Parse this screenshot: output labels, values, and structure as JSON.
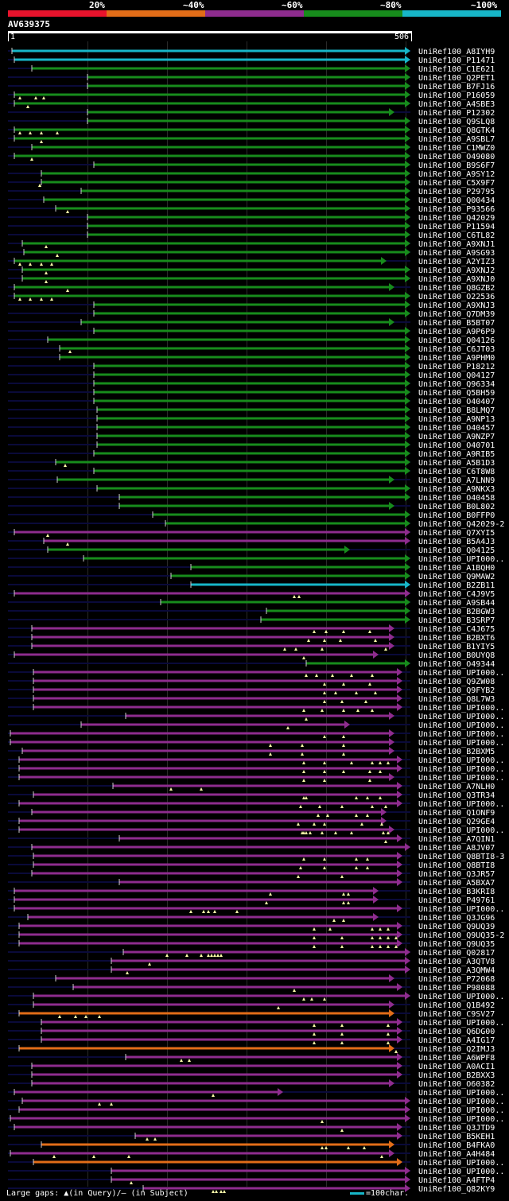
{
  "legend": {
    "labels": [
      "20%",
      "~40%",
      "~60%",
      "~80%",
      "~100%"
    ],
    "colors": [
      "#e8132c",
      "#e26d18",
      "#8e2c8e",
      "#178c1c",
      "#17b6c8"
    ]
  },
  "query": {
    "name": "AV639375",
    "length": 506,
    "ruler_start": "1",
    "ruler_end": "506"
  },
  "footer": {
    "gaps_text": "Large gaps: ▲(in Query)/– (in Subject)",
    "scale_text": "=100char."
  },
  "colors": {
    "cyan": "#17b6c8",
    "green": "#178c1c",
    "purple": "#8e2c8e",
    "orange": "#e26d18",
    "red": "#e8132c",
    "line": "#0a0a3a",
    "marker": "#ffffaa"
  },
  "hits": [
    {
      "name": "UniRef100_A8IYH9",
      "start": 5,
      "end": 506,
      "c": "cyan",
      "gaps": []
    },
    {
      "name": "UniRef100_P11471",
      "start": 8,
      "end": 506,
      "c": "cyan",
      "gaps": []
    },
    {
      "name": "UniRef100_C1E621",
      "start": 30,
      "end": 506,
      "c": "green",
      "gaps": []
    },
    {
      "name": "UniRef100_Q2PET1",
      "start": 100,
      "end": 506,
      "c": "green",
      "gaps": []
    },
    {
      "name": "UniRef100_B7FJ16",
      "start": 100,
      "end": 506,
      "c": "green",
      "gaps": []
    },
    {
      "name": "UniRef100_P16059",
      "start": 8,
      "end": 506,
      "c": "green",
      "gaps": [
        15,
        35,
        45
      ]
    },
    {
      "name": "UniRef100_A4SBE3",
      "start": 8,
      "end": 506,
      "c": "green",
      "gaps": [
        25
      ]
    },
    {
      "name": "UniRef100_P12302",
      "start": 100,
      "end": 486,
      "c": "green",
      "gaps": []
    },
    {
      "name": "UniRef100_Q9SLQ8",
      "start": 100,
      "end": 506,
      "c": "green",
      "gaps": []
    },
    {
      "name": "UniRef100_Q8GTK4",
      "start": 8,
      "end": 506,
      "c": "green",
      "gaps": [
        15,
        28,
        42,
        62
      ]
    },
    {
      "name": "UniRef100_A9SBL7",
      "start": 8,
      "end": 506,
      "c": "green",
      "gaps": [
        42
      ]
    },
    {
      "name": "UniRef100_C1MWZ0",
      "start": 30,
      "end": 506,
      "c": "green",
      "gaps": []
    },
    {
      "name": "UniRef100_O49080",
      "start": 8,
      "end": 506,
      "c": "green",
      "gaps": [
        30
      ]
    },
    {
      "name": "UniRef100_B9S6F7",
      "start": 108,
      "end": 506,
      "c": "green",
      "gaps": []
    },
    {
      "name": "UniRef100_A9SY12",
      "start": 42,
      "end": 506,
      "c": "green",
      "gaps": []
    },
    {
      "name": "UniRef100_C5X9F7",
      "start": 42,
      "end": 506,
      "c": "green",
      "gaps": [
        40
      ]
    },
    {
      "name": "UniRef100_P29795",
      "start": 92,
      "end": 506,
      "c": "green",
      "gaps": []
    },
    {
      "name": "UniRef100_Q00434",
      "start": 45,
      "end": 506,
      "c": "green",
      "gaps": []
    },
    {
      "name": "UniRef100_P93566",
      "start": 60,
      "end": 506,
      "c": "green",
      "gaps": [
        75
      ]
    },
    {
      "name": "UniRef100_Q42029",
      "start": 100,
      "end": 506,
      "c": "green",
      "gaps": []
    },
    {
      "name": "UniRef100_P11594",
      "start": 100,
      "end": 506,
      "c": "green",
      "gaps": []
    },
    {
      "name": "UniRef100_C6TL82",
      "start": 100,
      "end": 506,
      "c": "green",
      "gaps": []
    },
    {
      "name": "UniRef100_A9XNJ1",
      "start": 18,
      "end": 506,
      "c": "green",
      "gaps": [
        48
      ]
    },
    {
      "name": "UniRef100_A9SG93",
      "start": 20,
      "end": 506,
      "c": "green",
      "gaps": [
        62
      ]
    },
    {
      "name": "UniRef100_A2YIZ3",
      "start": 8,
      "end": 476,
      "c": "green",
      "gaps": [
        15,
        28,
        42,
        55
      ]
    },
    {
      "name": "UniRef100_A9XNJ2",
      "start": 18,
      "end": 506,
      "c": "green",
      "gaps": [
        48
      ]
    },
    {
      "name": "UniRef100_A9XNJ0",
      "start": 18,
      "end": 506,
      "c": "green",
      "gaps": [
        48
      ]
    },
    {
      "name": "UniRef100_Q8GZB2",
      "start": 8,
      "end": 486,
      "c": "green",
      "gaps": [
        75
      ]
    },
    {
      "name": "UniRef100_O22536",
      "start": 8,
      "end": 506,
      "c": "green",
      "gaps": [
        15,
        28,
        42,
        55
      ]
    },
    {
      "name": "UniRef100_A9XNJ3",
      "start": 108,
      "end": 506,
      "c": "green",
      "gaps": []
    },
    {
      "name": "UniRef100_Q7DM39",
      "start": 108,
      "end": 506,
      "c": "green",
      "gaps": []
    },
    {
      "name": "UniRef100_B5BT07",
      "start": 92,
      "end": 486,
      "c": "green",
      "gaps": []
    },
    {
      "name": "UniRef100_A9P6P9",
      "start": 108,
      "end": 506,
      "c": "green",
      "gaps": []
    },
    {
      "name": "UniRef100_Q04126",
      "start": 50,
      "end": 506,
      "c": "green",
      "gaps": []
    },
    {
      "name": "UniRef100_C6JT03",
      "start": 65,
      "end": 506,
      "c": "green",
      "gaps": [
        78
      ]
    },
    {
      "name": "UniRef100_A9PHM0",
      "start": 65,
      "end": 506,
      "c": "green",
      "gaps": []
    },
    {
      "name": "UniRef100_P18212",
      "start": 108,
      "end": 506,
      "c": "green",
      "gaps": []
    },
    {
      "name": "UniRef100_Q04127",
      "start": 108,
      "end": 506,
      "c": "green",
      "gaps": []
    },
    {
      "name": "UniRef100_Q96334",
      "start": 108,
      "end": 506,
      "c": "green",
      "gaps": []
    },
    {
      "name": "UniRef100_Q5BH59",
      "start": 108,
      "end": 506,
      "c": "green",
      "gaps": []
    },
    {
      "name": "UniRef100_O40407",
      "start": 108,
      "end": 506,
      "c": "green",
      "gaps": []
    },
    {
      "name": "UniRef100_B8LMQ7",
      "start": 112,
      "end": 506,
      "c": "green",
      "gaps": []
    },
    {
      "name": "UniRef100_A9NP13",
      "start": 112,
      "end": 506,
      "c": "green",
      "gaps": []
    },
    {
      "name": "UniRef100_O40457",
      "start": 112,
      "end": 506,
      "c": "green",
      "gaps": []
    },
    {
      "name": "UniRef100_A9NZP7",
      "start": 112,
      "end": 506,
      "c": "green",
      "gaps": []
    },
    {
      "name": "UniRef100_O40701",
      "start": 112,
      "end": 506,
      "c": "green",
      "gaps": []
    },
    {
      "name": "UniRef100_A9RIB5",
      "start": 108,
      "end": 506,
      "c": "green",
      "gaps": []
    },
    {
      "name": "UniRef100_A5B1D3",
      "start": 60,
      "end": 506,
      "c": "green",
      "gaps": [
        72
      ]
    },
    {
      "name": "UniRef100_C6T8W8",
      "start": 108,
      "end": 506,
      "c": "green",
      "gaps": []
    },
    {
      "name": "UniRef100_A7LNN9",
      "start": 62,
      "end": 486,
      "c": "green",
      "gaps": []
    },
    {
      "name": "UniRef100_A9NKX3",
      "start": 112,
      "end": 506,
      "c": "green",
      "gaps": []
    },
    {
      "name": "UniRef100_O40458",
      "start": 140,
      "end": 506,
      "c": "green",
      "gaps": []
    },
    {
      "name": "UniRef100_B0L802",
      "start": 140,
      "end": 486,
      "c": "green",
      "gaps": []
    },
    {
      "name": "UniRef100_B0FFP0",
      "start": 182,
      "end": 506,
      "c": "green",
      "gaps": []
    },
    {
      "name": "UniRef100_Q42029-2",
      "start": 198,
      "end": 506,
      "c": "green",
      "gaps": []
    },
    {
      "name": "UniRef100_Q7XYI5",
      "start": 8,
      "end": 506,
      "c": "purple",
      "gaps": [
        50
      ]
    },
    {
      "name": "UniRef100_B5A4J3",
      "start": 45,
      "end": 506,
      "c": "purple",
      "gaps": [
        75
      ]
    },
    {
      "name": "UniRef100_Q04125",
      "start": 50,
      "end": 430,
      "c": "green",
      "gaps": []
    },
    {
      "name": "UniRef100_UPI000..",
      "start": 95,
      "end": 506,
      "c": "green",
      "gaps": []
    },
    {
      "name": "UniRef100_A1BQH0",
      "start": 230,
      "end": 506,
      "c": "green",
      "gaps": []
    },
    {
      "name": "UniRef100_Q9MAW2",
      "start": 205,
      "end": 506,
      "c": "green",
      "gaps": []
    },
    {
      "name": "UniRef100_B2ZB11",
      "start": 230,
      "end": 506,
      "c": "cyan",
      "gaps": []
    },
    {
      "name": "UniRef100_C4J9V5",
      "start": 8,
      "end": 506,
      "c": "purple",
      "gaps": [
        360,
        366
      ]
    },
    {
      "name": "UniRef100_A9SB44",
      "start": 192,
      "end": 506,
      "c": "green",
      "gaps": []
    },
    {
      "name": "UniRef100_B2BGW3",
      "start": 325,
      "end": 506,
      "c": "green",
      "gaps": []
    },
    {
      "name": "UniRef100_B3SRP7",
      "start": 318,
      "end": 506,
      "c": "green",
      "gaps": []
    },
    {
      "name": "UniRef100_C4J675",
      "start": 30,
      "end": 486,
      "c": "purple",
      "gaps": [
        385,
        400,
        422,
        455
      ]
    },
    {
      "name": "UniRef100_B2BXT6",
      "start": 30,
      "end": 486,
      "c": "purple",
      "gaps": [
        378,
        398,
        418,
        462
      ]
    },
    {
      "name": "UniRef100_B1YIY5",
      "start": 30,
      "end": 486,
      "c": "purple",
      "gaps": [
        348,
        362,
        395,
        475
      ]
    },
    {
      "name": "UniRef100_B0UYQ8",
      "start": 8,
      "end": 466,
      "c": "purple",
      "gaps": [
        372
      ]
    },
    {
      "name": "UniRef100_O49344",
      "start": 375,
      "end": 506,
      "c": "green",
      "gaps": []
    },
    {
      "name": "UniRef100_UPI000..",
      "start": 32,
      "end": 496,
      "c": "purple",
      "gaps": [
        375,
        388,
        408,
        432,
        458
      ]
    },
    {
      "name": "UniRef100_Q9ZW08",
      "start": 32,
      "end": 496,
      "c": "purple",
      "gaps": [
        398,
        422,
        455
      ]
    },
    {
      "name": "UniRef100_Q9FYB2",
      "start": 32,
      "end": 496,
      "c": "purple",
      "gaps": [
        398,
        412,
        438,
        462
      ]
    },
    {
      "name": "UniRef100_Q8L7W3",
      "start": 32,
      "end": 496,
      "c": "purple",
      "gaps": [
        398,
        420,
        450
      ]
    },
    {
      "name": "UniRef100_UPI000..",
      "start": 32,
      "end": 496,
      "c": "purple",
      "gaps": [
        372,
        395,
        422,
        440,
        458
      ]
    },
    {
      "name": "UniRef100_UPI000..",
      "start": 148,
      "end": 486,
      "c": "purple",
      "gaps": [
        375
      ]
    },
    {
      "name": "UniRef100_UPI000..",
      "start": 92,
      "end": 430,
      "c": "purple",
      "gaps": [
        352
      ]
    },
    {
      "name": "UniRef100_UPI000..",
      "start": 3,
      "end": 486,
      "c": "purple",
      "gaps": [
        398,
        422
      ]
    },
    {
      "name": "UniRef100_UPI000..",
      "start": 3,
      "end": 486,
      "c": "purple",
      "gaps": [
        330,
        370,
        422
      ]
    },
    {
      "name": "UniRef100_B2BXM5",
      "start": 18,
      "end": 486,
      "c": "purple",
      "gaps": [
        330,
        370,
        422
      ]
    },
    {
      "name": "UniRef100_UPI000..",
      "start": 14,
      "end": 496,
      "c": "purple",
      "gaps": [
        372,
        398,
        432,
        458,
        468,
        478
      ]
    },
    {
      "name": "UniRef100_UPI000..",
      "start": 14,
      "end": 496,
      "c": "purple",
      "gaps": [
        372,
        398,
        422,
        455,
        468
      ]
    },
    {
      "name": "UniRef100_UPI000..",
      "start": 14,
      "end": 486,
      "c": "purple",
      "gaps": [
        372,
        398,
        455
      ]
    },
    {
      "name": "UniRef100_A7NLH0",
      "start": 132,
      "end": 496,
      "c": "purple",
      "gaps": [
        205,
        243
      ]
    },
    {
      "name": "UniRef100_Q3TR34",
      "start": 32,
      "end": 496,
      "c": "purple",
      "gaps": [
        372,
        375,
        438,
        452,
        468
      ]
    },
    {
      "name": "UniRef100_UPI000..",
      "start": 14,
      "end": 496,
      "c": "purple",
      "gaps": [
        368,
        392,
        420,
        458,
        475
      ]
    },
    {
      "name": "UniRef100_Q1ONF9",
      "start": 30,
      "end": 476,
      "c": "purple",
      "gaps": [
        390,
        402,
        438,
        452
      ]
    },
    {
      "name": "UniRef100_Q29GE4",
      "start": 14,
      "end": 476,
      "c": "purple",
      "gaps": [
        365,
        385,
        398,
        445,
        470
      ]
    },
    {
      "name": "UniRef100_UPI000..",
      "start": 14,
      "end": 486,
      "c": "purple",
      "gaps": [
        370,
        372,
        375,
        380,
        395,
        412,
        432,
        472,
        478
      ]
    },
    {
      "name": "UniRef100_A7QIN1",
      "start": 140,
      "end": 496,
      "c": "purple",
      "gaps": [
        475
      ]
    },
    {
      "name": "UniRef100_A8JV07",
      "start": 30,
      "end": 506,
      "c": "purple",
      "gaps": []
    },
    {
      "name": "UniRef100_Q8BTI8-3",
      "start": 32,
      "end": 496,
      "c": "purple",
      "gaps": [
        372,
        398,
        438,
        452
      ]
    },
    {
      "name": "UniRef100_Q8BTI8",
      "start": 32,
      "end": 496,
      "c": "purple",
      "gaps": [
        368,
        398,
        438,
        452
      ]
    },
    {
      "name": "UniRef100_Q3JR57",
      "start": 30,
      "end": 496,
      "c": "purple",
      "gaps": [
        365,
        420
      ]
    },
    {
      "name": "UniRef100_A5BXA7",
      "start": 140,
      "end": 496,
      "c": "purple",
      "gaps": []
    },
    {
      "name": "UniRef100_B3KRI8",
      "start": 8,
      "end": 466,
      "c": "purple",
      "gaps": [
        330,
        422,
        428
      ]
    },
    {
      "name": "UniRef100_P49761",
      "start": 8,
      "end": 466,
      "c": "purple",
      "gaps": [
        325,
        422,
        428
      ]
    },
    {
      "name": "UniRef100_UPI000..",
      "start": 8,
      "end": 496,
      "c": "purple",
      "gaps": [
        230,
        246,
        252,
        260,
        288
      ]
    },
    {
      "name": "UniRef100_Q3JG96",
      "start": 25,
      "end": 466,
      "c": "purple",
      "gaps": [
        410,
        422
      ]
    },
    {
      "name": "UniRef100_Q9UQ39",
      "start": 14,
      "end": 496,
      "c": "purple",
      "gaps": [
        385,
        405,
        458,
        468,
        478
      ]
    },
    {
      "name": "UniRef100_Q9UQ35-2",
      "start": 14,
      "end": 496,
      "c": "purple",
      "gaps": [
        385,
        420,
        458,
        468,
        478,
        488
      ]
    },
    {
      "name": "UniRef100_Q9UQ35",
      "start": 14,
      "end": 496,
      "c": "purple",
      "gaps": [
        385,
        420,
        458,
        468,
        478,
        488
      ]
    },
    {
      "name": "UniRef100_Q02817",
      "start": 145,
      "end": 506,
      "c": "purple",
      "gaps": [
        200,
        225,
        243,
        252,
        256,
        260,
        264,
        268
      ]
    },
    {
      "name": "UniRef100_A3QTV8",
      "start": 130,
      "end": 506,
      "c": "purple",
      "gaps": [
        178
      ]
    },
    {
      "name": "UniRef100_A3QMW4",
      "start": 130,
      "end": 506,
      "c": "purple",
      "gaps": [
        150
      ]
    },
    {
      "name": "UniRef100_P72068",
      "start": 60,
      "end": 486,
      "c": "purple",
      "gaps": []
    },
    {
      "name": "UniRef100_P98088",
      "start": 82,
      "end": 496,
      "c": "purple",
      "gaps": [
        360
      ]
    },
    {
      "name": "UniRef100_UPI000..",
      "start": 32,
      "end": 506,
      "c": "purple",
      "gaps": [
        372,
        382,
        398
      ]
    },
    {
      "name": "UniRef100_Q1B492",
      "start": 32,
      "end": 486,
      "c": "purple",
      "gaps": [
        340
      ]
    },
    {
      "name": "UniRef100_C9SV27",
      "start": 14,
      "end": 486,
      "c": "orange",
      "gaps": [
        65,
        85,
        98,
        115
      ]
    },
    {
      "name": "UniRef100_UPI000..",
      "start": 42,
      "end": 496,
      "c": "purple",
      "gaps": [
        385,
        420,
        478
      ]
    },
    {
      "name": "UniRef100_Q6DG00",
      "start": 42,
      "end": 496,
      "c": "purple",
      "gaps": [
        385,
        420,
        478
      ]
    },
    {
      "name": "UniRef100_A4IG17",
      "start": 42,
      "end": 496,
      "c": "purple",
      "gaps": [
        385,
        420,
        478
      ]
    },
    {
      "name": "UniRef100_Q2IMJ3",
      "start": 14,
      "end": 486,
      "c": "orange",
      "gaps": [
        488
      ]
    },
    {
      "name": "UniRef100_A6WPF8",
      "start": 148,
      "end": 496,
      "c": "purple",
      "gaps": [
        218,
        228
      ]
    },
    {
      "name": "UniRef100_A0ACI1",
      "start": 30,
      "end": 496,
      "c": "purple",
      "gaps": []
    },
    {
      "name": "UniRef100_B2BXX3",
      "start": 30,
      "end": 496,
      "c": "purple",
      "gaps": []
    },
    {
      "name": "UniRef100_O60382",
      "start": 30,
      "end": 486,
      "c": "purple",
      "gaps": []
    },
    {
      "name": "UniRef100_UPI000..",
      "start": 8,
      "end": 346,
      "c": "purple",
      "gaps": [
        258
      ]
    },
    {
      "name": "UniRef100_UPI000..",
      "start": 18,
      "end": 506,
      "c": "purple",
      "gaps": [
        115,
        130
      ]
    },
    {
      "name": "UniRef100_UPI000..",
      "start": 14,
      "end": 506,
      "c": "purple",
      "gaps": []
    },
    {
      "name": "UniRef100_UPI000..",
      "start": 3,
      "end": 506,
      "c": "purple",
      "gaps": [
        395
      ]
    },
    {
      "name": "UniRef100_Q3JTD9",
      "start": 8,
      "end": 496,
      "c": "purple",
      "gaps": [
        420
      ]
    },
    {
      "name": "UniRef100_B5KEH1",
      "start": 160,
      "end": 496,
      "c": "purple",
      "gaps": [
        175,
        185
      ]
    },
    {
      "name": "UniRef100_B4FKA0",
      "start": 42,
      "end": 486,
      "c": "orange",
      "gaps": [
        395,
        400,
        428,
        448
      ]
    },
    {
      "name": "UniRef100_A4H484",
      "start": 3,
      "end": 486,
      "c": "purple",
      "gaps": [
        58,
        108,
        152,
        470
      ]
    },
    {
      "name": "UniRef100_UPI000..",
      "start": 32,
      "end": 496,
      "c": "orange",
      "gaps": []
    },
    {
      "name": "UniRef100_UPI000..",
      "start": 130,
      "end": 506,
      "c": "purple",
      "gaps": []
    },
    {
      "name": "UniRef100_A4FTP4",
      "start": 130,
      "end": 506,
      "c": "purple",
      "gaps": [
        155
      ]
    },
    {
      "name": "UniRef100_Q82KY9",
      "start": 170,
      "end": 506,
      "c": "purple",
      "gaps": [
        258,
        262,
        268,
        272
      ]
    }
  ]
}
